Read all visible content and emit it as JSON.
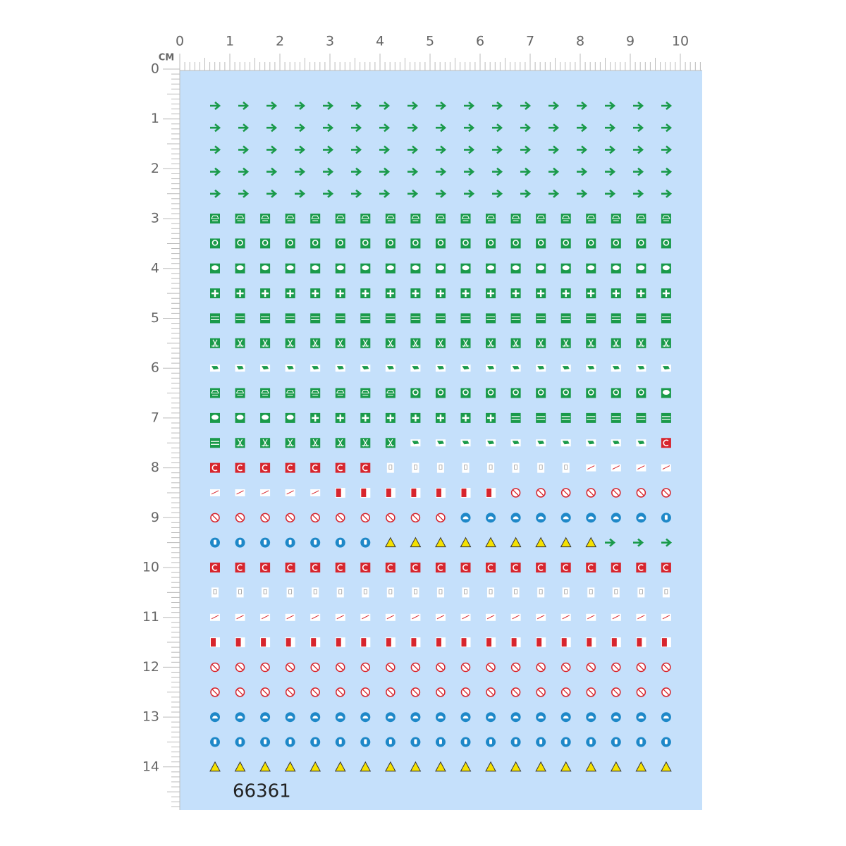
{
  "ruler": {
    "unit": "CM",
    "top": [
      0,
      1,
      2,
      3,
      4,
      5,
      6,
      7,
      8,
      9,
      10
    ],
    "left": [
      0,
      1,
      2,
      3,
      4,
      5,
      6,
      7,
      8,
      9,
      10,
      11,
      12,
      13,
      14
    ]
  },
  "sheet": {
    "code": "66361"
  }
}
